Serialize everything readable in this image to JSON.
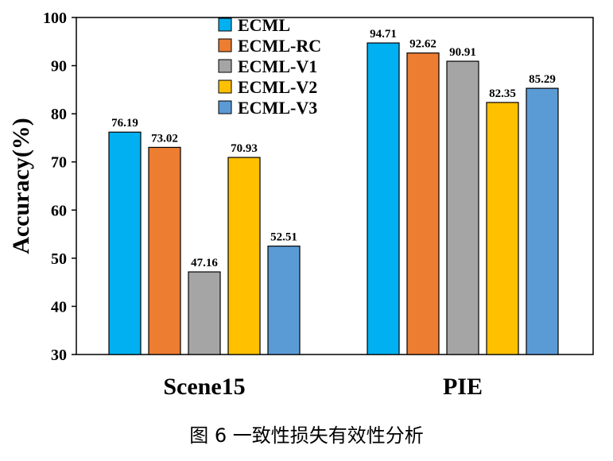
{
  "chart_data": {
    "type": "bar",
    "categories": [
      "Scene15",
      "PIE"
    ],
    "series": [
      {
        "name": "ECML",
        "color": "#00b0f0",
        "values": [
          76.19,
          94.71
        ],
        "labels": [
          "76.19",
          "94.71"
        ]
      },
      {
        "name": "ECML-RC",
        "color": "#ed7d31",
        "values": [
          73.02,
          92.62
        ],
        "labels": [
          "73.02",
          "92.62"
        ]
      },
      {
        "name": "ECML-V1",
        "color": "#a5a5a5",
        "values": [
          47.16,
          90.91
        ],
        "labels": [
          "47.16",
          "90.91"
        ]
      },
      {
        "name": "ECML-V2",
        "color": "#ffc000",
        "values": [
          70.93,
          82.35
        ],
        "labels": [
          "70.93",
          "82.35"
        ]
      },
      {
        "name": "ECML-V3",
        "color": "#5b9bd5",
        "values": [
          52.51,
          85.29
        ],
        "labels": [
          "52.51",
          "85.29"
        ]
      }
    ],
    "ylabel": "Accuracy(%)",
    "ylim": [
      30,
      100
    ],
    "yticks": [
      "30",
      "40",
      "50",
      "60",
      "70",
      "80",
      "90",
      "100"
    ],
    "grid": false,
    "legend": "top-center"
  },
  "caption": "图 6   一致性损失有效性分析"
}
